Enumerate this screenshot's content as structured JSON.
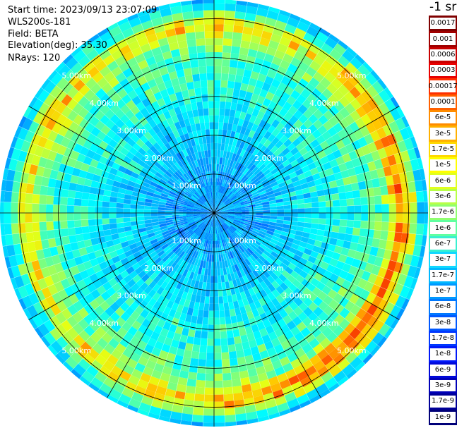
{
  "header": {
    "start_time": "Start time: 2023/09/13 23:07:09",
    "device": "WLS200s-181",
    "field": "Field: BETA",
    "elevation": "Elevation(deg): 35.30",
    "nrays": "NRays: 120"
  },
  "colorbar": {
    "unit": "-1 sr",
    "labels": [
      "0.0017",
      "0.001",
      "0.0006",
      "0.0003",
      "0.00017",
      "0.0001",
      "6e-5",
      "3e-5",
      "1.7e-5",
      "1e-5",
      "6e-6",
      "3e-6",
      "1.7e-6",
      "1e-6",
      "6e-7",
      "3e-7",
      "1.7e-7",
      "1e-7",
      "6e-8",
      "3e-8",
      "1.7e-8",
      "1e-8",
      "6e-9",
      "3e-9",
      "1.7e-9",
      "1e-9"
    ],
    "colors": [
      "#7f0000",
      "#9f0000",
      "#c80000",
      "#e80000",
      "#ff3000",
      "#ff6000",
      "#ff8c00",
      "#ffb000",
      "#ffd800",
      "#ffff00",
      "#e0ff20",
      "#b8ff48",
      "#90ff70",
      "#60ffa0",
      "#38f0d0",
      "#10d8ff",
      "#00b8ff",
      "#0098ff",
      "#0078ff",
      "#0058ff",
      "#0038ff",
      "#0018f8",
      "#0008d8",
      "#0000b8",
      "#000098",
      "#000078"
    ]
  },
  "chart_data": {
    "type": "heatmap",
    "projection": "polar-ppi",
    "field": "BETA",
    "nrays": 120,
    "range_rings_km": [
      1,
      2,
      3,
      4,
      5
    ],
    "ring_labels": [
      "1.00km",
      "2.00km",
      "3.00km",
      "4.00km",
      "5.00km"
    ],
    "max_range_km": 5.5,
    "spoke_step_deg": 30,
    "color_scale": "log",
    "range_profile_log10_beta": [
      {
        "r": 0.0,
        "v": -6.8
      },
      {
        "r": 1.0,
        "v": -6.7
      },
      {
        "r": 2.0,
        "v": -6.3
      },
      {
        "r": 3.0,
        "v": -5.9
      },
      {
        "r": 4.0,
        "v": -5.6
      },
      {
        "r": 4.5,
        "v": -5.1
      },
      {
        "r": 4.85,
        "v": -4.3
      },
      {
        "r": 5.2,
        "v": -5.7
      },
      {
        "r": 5.5,
        "v": -6.5
      }
    ]
  }
}
